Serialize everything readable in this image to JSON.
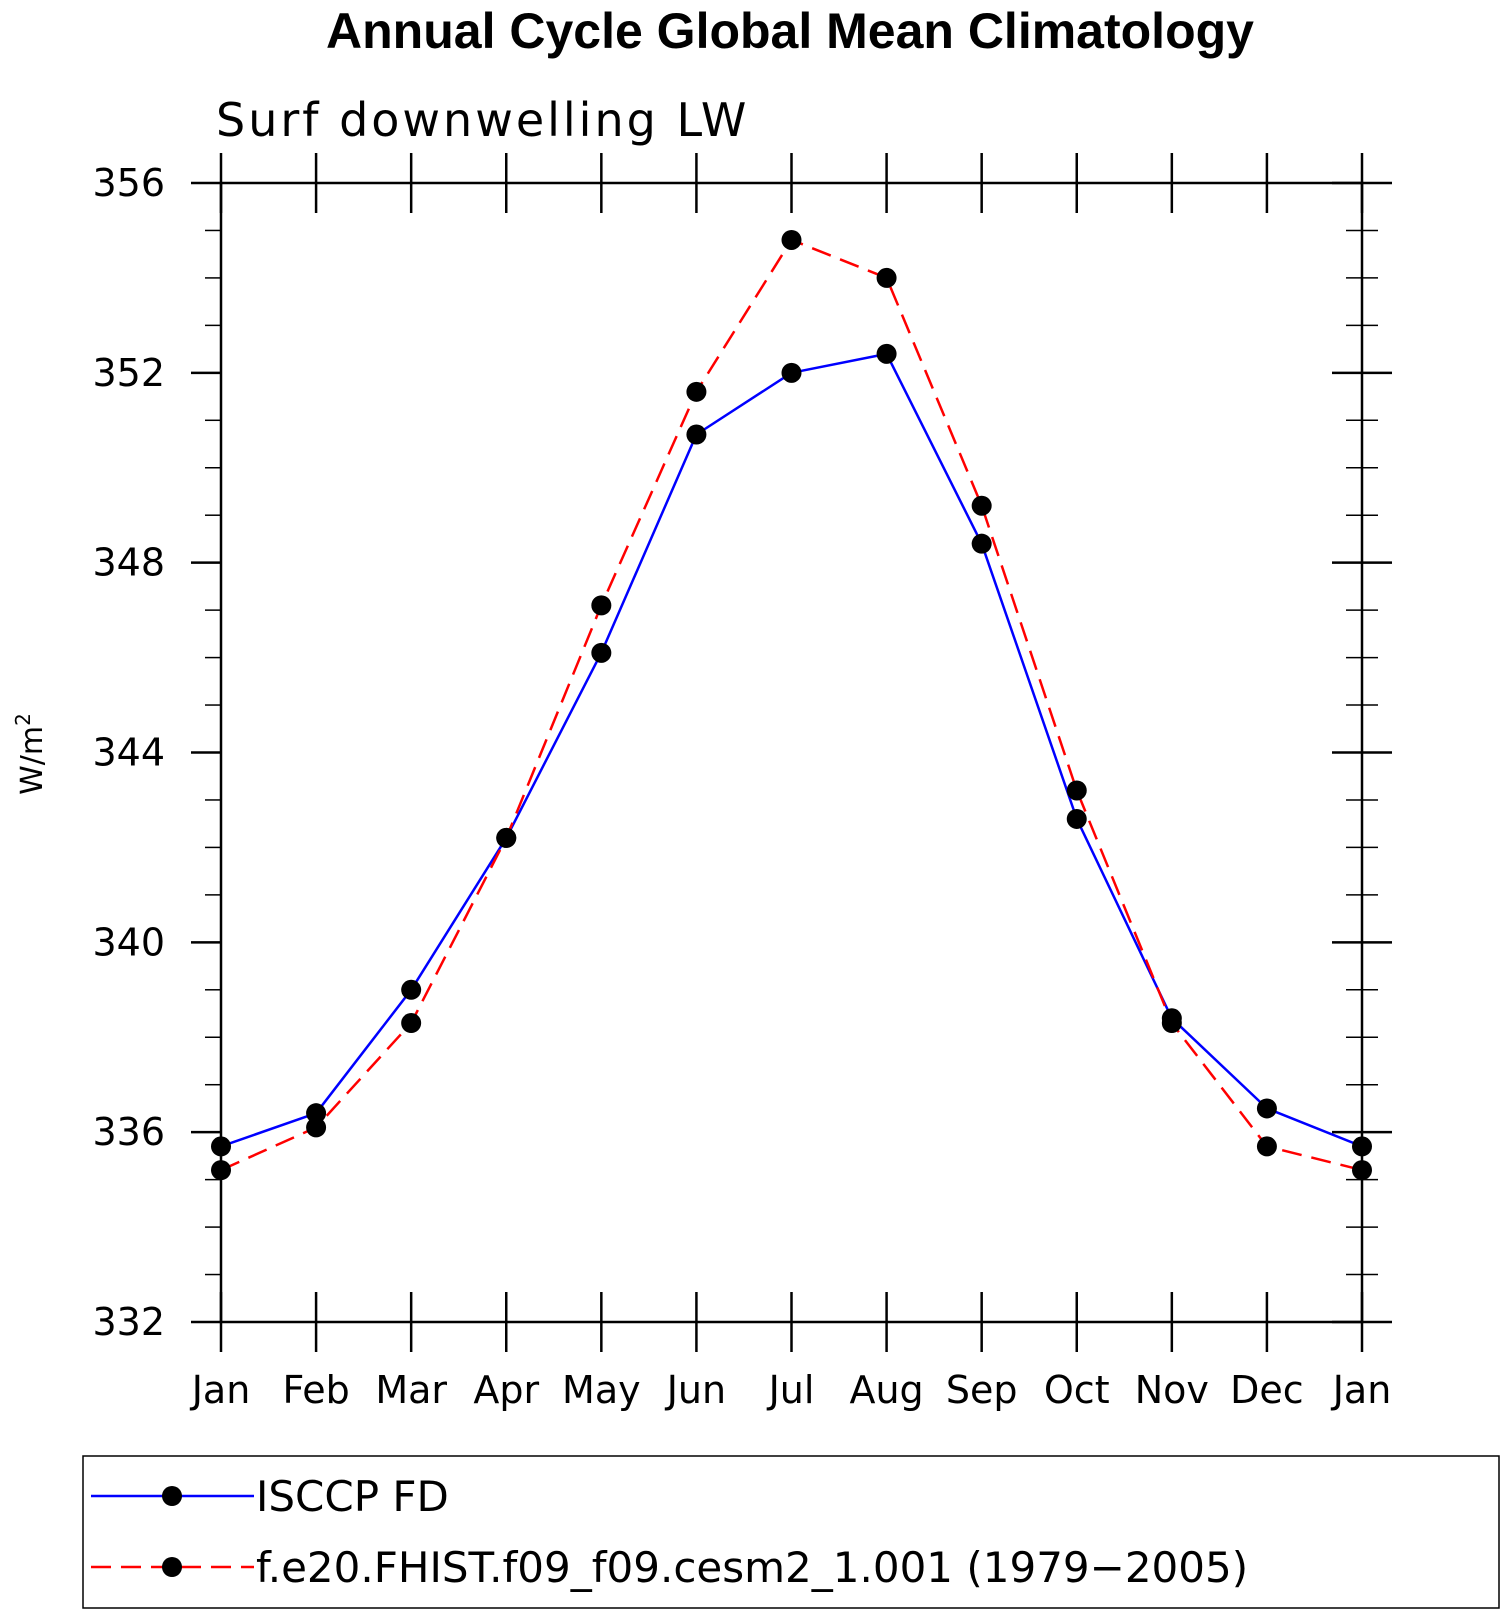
{
  "chart_data": {
    "type": "line",
    "title": "Annual Cycle Global Mean Climatology",
    "subtitle": "Surf downwelling LW",
    "ylabel": "W/m",
    "ylabel_sup": "2",
    "ylim": [
      332,
      356
    ],
    "yticks": [
      332,
      336,
      340,
      344,
      348,
      352,
      356
    ],
    "categories": [
      "Jan",
      "Feb",
      "Mar",
      "Apr",
      "May",
      "Jun",
      "Jul",
      "Aug",
      "Sep",
      "Oct",
      "Nov",
      "Dec",
      "Jan"
    ],
    "grid": false,
    "legend_position": "bottom",
    "series": [
      {
        "name": "ISCCP FD",
        "color": "#0000ff",
        "dash": "solid",
        "values": [
          335.7,
          336.4,
          339.0,
          342.2,
          346.1,
          350.7,
          352.0,
          352.4,
          348.4,
          342.6,
          338.4,
          336.5,
          335.7
        ]
      },
      {
        "name": "f.e20.FHIST.f09_f09.cesm2_1.001 (1979−2005)",
        "color": "#ff0000",
        "dash": "dashed",
        "values": [
          335.2,
          336.1,
          338.3,
          342.2,
          347.1,
          351.6,
          354.8,
          354.0,
          349.2,
          343.2,
          338.3,
          335.7,
          335.2
        ]
      }
    ]
  }
}
